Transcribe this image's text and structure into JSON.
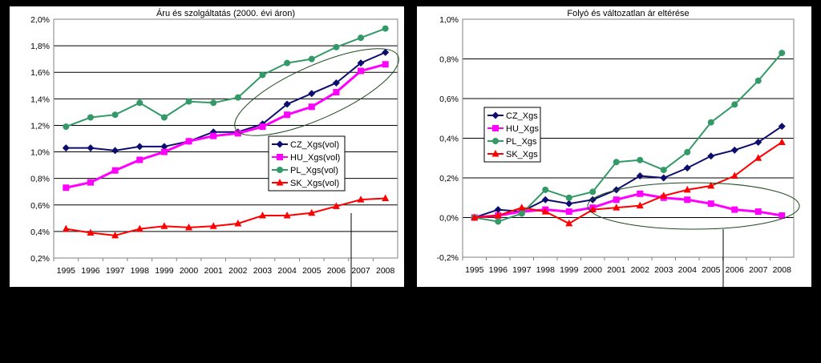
{
  "chart_data": [
    {
      "type": "line",
      "title": "Áru és szolgáltatás (2000. évi áron)",
      "categories": [
        "1995",
        "1996",
        "1997",
        "1998",
        "1999",
        "2000",
        "2001",
        "2002",
        "2003",
        "2004",
        "2005",
        "2006",
        "2007",
        "2008"
      ],
      "ylim": [
        0.2,
        2.0
      ],
      "yticks": [
        "0,2%",
        "0,4%",
        "0,6%",
        "0,8%",
        "1,0%",
        "1,2%",
        "1,4%",
        "1,6%",
        "1,8%",
        "2,0%"
      ],
      "grid": true,
      "legend": "center-right",
      "series": [
        {
          "name": "CZ_Xgs(vol)",
          "color": "#0d0d6e",
          "marker": "diamond",
          "values": [
            1.03,
            1.03,
            1.01,
            1.04,
            1.04,
            1.08,
            1.15,
            1.15,
            1.21,
            1.36,
            1.44,
            1.52,
            1.67,
            1.75
          ]
        },
        {
          "name": "HU_Xgs(vol)",
          "color": "#ff00ff",
          "marker": "square",
          "values": [
            0.73,
            0.77,
            0.86,
            0.94,
            1.0,
            1.08,
            1.12,
            1.14,
            1.19,
            1.28,
            1.34,
            1.45,
            1.61,
            1.66
          ]
        },
        {
          "name": "PL_Xgs(vol)",
          "color": "#339966",
          "marker": "circle",
          "values": [
            1.19,
            1.26,
            1.28,
            1.37,
            1.26,
            1.38,
            1.37,
            1.41,
            1.58,
            1.67,
            1.7,
            1.79,
            1.86,
            1.93
          ]
        },
        {
          "name": "SK_Xgs(vol)",
          "color": "#ff0000",
          "marker": "triangle",
          "values": [
            0.42,
            0.39,
            0.37,
            0.42,
            0.44,
            0.43,
            0.44,
            0.46,
            0.52,
            0.52,
            0.54,
            0.59,
            0.64,
            0.65
          ]
        }
      ]
    },
    {
      "type": "line",
      "title": "Folyó és változatlan ár eltérése",
      "categories": [
        "1995",
        "1996",
        "1997",
        "1998",
        "1999",
        "2000",
        "2001",
        "2002",
        "2003",
        "2004",
        "2005",
        "2006",
        "2007",
        "2008"
      ],
      "ylim": [
        -0.2,
        1.0
      ],
      "yticks": [
        "-0,2%",
        "0,0%",
        "0,2%",
        "0,4%",
        "0,6%",
        "0,8%",
        "1,0%"
      ],
      "grid": true,
      "legend": "center-left",
      "series": [
        {
          "name": "CZ_Xgs",
          "color": "#0d0d6e",
          "marker": "diamond",
          "values": [
            0.0,
            0.04,
            0.03,
            0.09,
            0.07,
            0.09,
            0.14,
            0.21,
            0.2,
            0.25,
            0.31,
            0.34,
            0.38,
            0.46
          ]
        },
        {
          "name": "HU_Xgs",
          "color": "#ff00ff",
          "marker": "square",
          "values": [
            0.0,
            0.01,
            0.03,
            0.04,
            0.03,
            0.05,
            0.09,
            0.12,
            0.1,
            0.09,
            0.07,
            0.04,
            0.03,
            0.01
          ]
        },
        {
          "name": "PL_Xgs",
          "color": "#339966",
          "marker": "circle",
          "values": [
            0.0,
            -0.02,
            0.02,
            0.14,
            0.1,
            0.13,
            0.28,
            0.29,
            0.24,
            0.33,
            0.48,
            0.57,
            0.69,
            0.83
          ]
        },
        {
          "name": "SK_Xgs",
          "color": "#ff0000",
          "marker": "triangle",
          "values": [
            0.0,
            0.01,
            0.05,
            0.03,
            -0.03,
            0.04,
            0.05,
            0.06,
            0.11,
            0.14,
            0.16,
            0.21,
            0.3,
            0.38
          ]
        }
      ]
    }
  ]
}
